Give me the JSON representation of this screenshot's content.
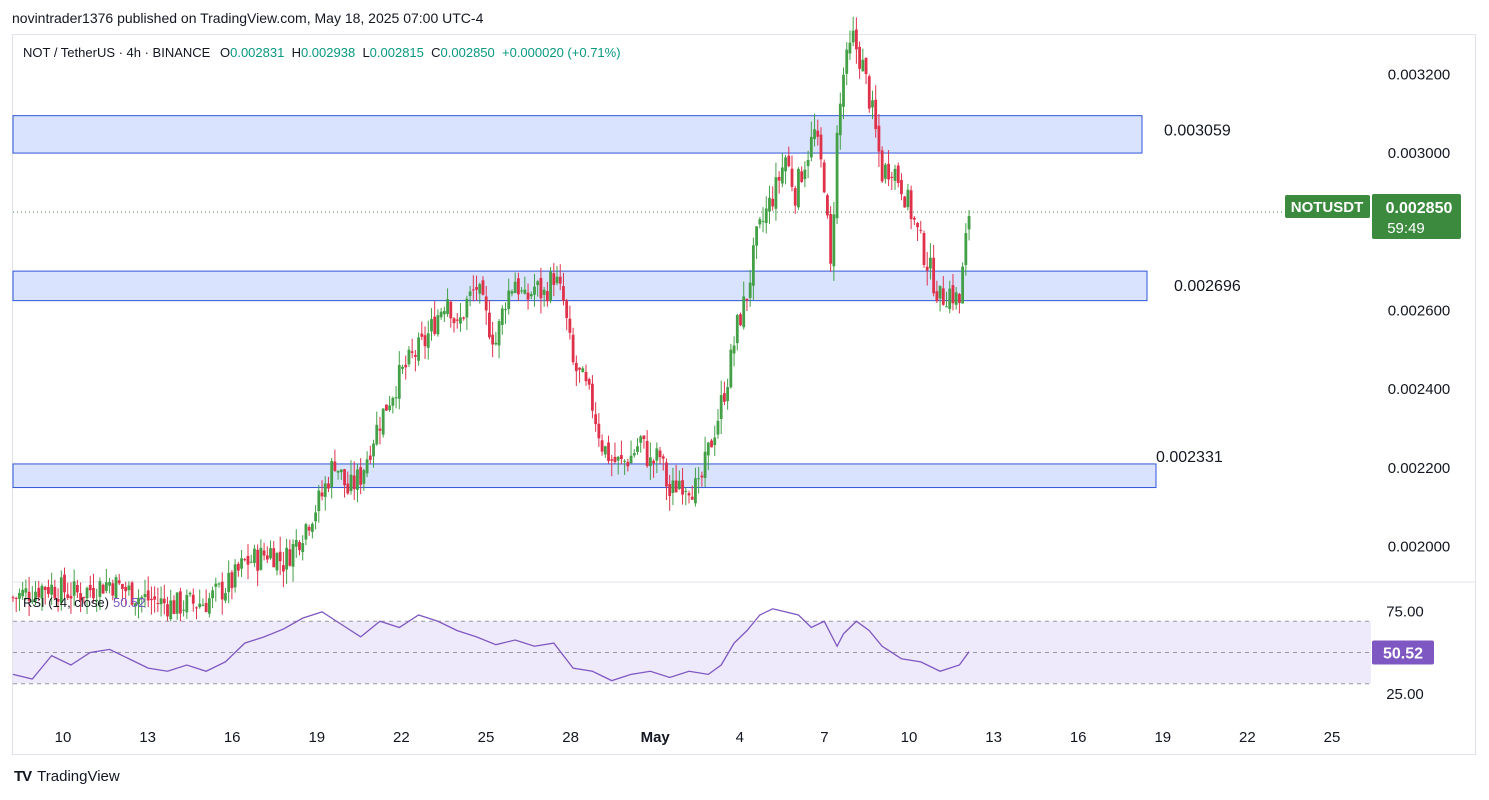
{
  "header": {
    "publisher": "novintrader1376 published on TradingView.com, May 18, 2025 07:00 UTC-4"
  },
  "legend": {
    "symbol": "NOT / TetherUS · 4h · BINANCE",
    "o_label": "O",
    "o_value": "0.002831",
    "h_label": "H",
    "h_value": "0.002938",
    "l_label": "L",
    "l_value": "0.002815",
    "c_label": "C",
    "c_value": "0.002850",
    "change": "+0.000020 (+0.71%)"
  },
  "price_tag": {
    "ticker": "NOTUSDT",
    "price": "0.002850",
    "countdown": "59:49"
  },
  "rsi": {
    "label": "RSI (14, close)",
    "value": "50.52",
    "ticks": [
      "75.00",
      "25.00"
    ]
  },
  "footer": {
    "brand": "TradingView",
    "logo": "TV"
  },
  "colors": {
    "up": "#089981",
    "up_candle": "#43a047",
    "down": "#e0314b",
    "zone_fill": "#d6e0fe",
    "zone_border": "#2f56d8",
    "rsi_line": "#7e57c2",
    "rsi_band": "#efeafb",
    "tag_green": "#3b8a3e"
  },
  "chart_data": {
    "type": "candlestick",
    "title": "NOT / TetherUS · 4h · BINANCE",
    "ylim": [
      0.00191,
      0.0033
    ],
    "y_ticks": [
      "0.003200",
      "0.003000",
      "0.002600",
      "0.002400",
      "0.002200",
      "0.002000"
    ],
    "x_ticks": [
      "10",
      "13",
      "16",
      "19",
      "22",
      "25",
      "28",
      "May",
      "4",
      "7",
      "10",
      "13",
      "16",
      "19",
      "22",
      "25"
    ],
    "zones": [
      {
        "label": "0.003059",
        "top": 0.003095,
        "bottom": 0.003
      },
      {
        "label": "0.002696",
        "top": 0.0027,
        "bottom": 0.002625
      },
      {
        "label": "0.002331",
        "top": 0.00221,
        "bottom": 0.00215
      }
    ],
    "current_price": 0.00285,
    "price_path": [
      [
        0,
        0.00187
      ],
      [
        10,
        0.0019
      ],
      [
        20,
        0.00188
      ],
      [
        30,
        0.00191
      ],
      [
        40,
        0.00187
      ],
      [
        50,
        0.00185
      ],
      [
        60,
        0.00186
      ],
      [
        68,
        0.00191
      ],
      [
        72,
        0.00196
      ],
      [
        76,
        0.00197
      ],
      [
        80,
        0.00199
      ],
      [
        84,
        0.00196
      ],
      [
        88,
        0.00201
      ],
      [
        92,
        0.00207
      ],
      [
        96,
        0.00213
      ],
      [
        100,
        0.00222
      ],
      [
        104,
        0.00214
      ],
      [
        108,
        0.00218
      ],
      [
        112,
        0.00228
      ],
      [
        116,
        0.00236
      ],
      [
        120,
        0.00243
      ],
      [
        124,
        0.00248
      ],
      [
        128,
        0.00252
      ],
      [
        132,
        0.00259
      ],
      [
        135,
        0.00264
      ],
      [
        138,
        0.00255
      ],
      [
        141,
        0.00262
      ],
      [
        144,
        0.00266
      ],
      [
        147,
        0.00258
      ],
      [
        150,
        0.00252
      ],
      [
        153,
        0.00263
      ],
      [
        156,
        0.00268
      ],
      [
        159,
        0.00262
      ],
      [
        162,
        0.00266
      ],
      [
        165,
        0.00264
      ],
      [
        168,
        0.00269
      ],
      [
        171,
        0.00262
      ],
      [
        174,
        0.00246
      ],
      [
        177,
        0.00242
      ],
      [
        180,
        0.00236
      ],
      [
        183,
        0.00226
      ],
      [
        186,
        0.00222
      ],
      [
        189,
        0.00221
      ],
      [
        192,
        0.00223
      ],
      [
        195,
        0.00227
      ],
      [
        198,
        0.00221
      ],
      [
        201,
        0.00223
      ],
      [
        204,
        0.00213
      ],
      [
        207,
        0.00217
      ],
      [
        210,
        0.00216
      ],
      [
        213,
        0.00214
      ],
      [
        216,
        0.00224
      ],
      [
        219,
        0.00233
      ],
      [
        222,
        0.00243
      ],
      [
        225,
        0.00256
      ],
      [
        228,
        0.00264
      ],
      [
        231,
        0.00278
      ],
      [
        234,
        0.00285
      ],
      [
        237,
        0.00291
      ],
      [
        240,
        0.00299
      ],
      [
        243,
        0.0029
      ],
      [
        246,
        0.00298
      ],
      [
        249,
        0.00305
      ],
      [
        252,
        0.00293
      ],
      [
        254,
        0.0027
      ],
      [
        256,
        0.00304
      ],
      [
        258,
        0.0032
      ],
      [
        261,
        0.00329
      ],
      [
        264,
        0.00322
      ],
      [
        267,
        0.0031
      ],
      [
        270,
        0.00295
      ],
      [
        273,
        0.00297
      ],
      [
        276,
        0.00292
      ],
      [
        279,
        0.00285
      ],
      [
        282,
        0.00277
      ],
      [
        285,
        0.0027
      ],
      [
        288,
        0.00263
      ],
      [
        291,
        0.00265
      ],
      [
        294,
        0.00262
      ],
      [
        297,
        0.00285
      ]
    ],
    "rsi_path": [
      [
        0,
        36
      ],
      [
        6,
        33
      ],
      [
        12,
        48
      ],
      [
        18,
        42
      ],
      [
        24,
        50
      ],
      [
        30,
        52
      ],
      [
        36,
        46
      ],
      [
        42,
        40
      ],
      [
        48,
        38
      ],
      [
        54,
        42
      ],
      [
        60,
        38
      ],
      [
        66,
        44
      ],
      [
        72,
        56
      ],
      [
        78,
        60
      ],
      [
        84,
        65
      ],
      [
        90,
        72
      ],
      [
        96,
        76
      ],
      [
        102,
        68
      ],
      [
        108,
        60
      ],
      [
        114,
        70
      ],
      [
        120,
        66
      ],
      [
        126,
        74
      ],
      [
        132,
        70
      ],
      [
        138,
        64
      ],
      [
        144,
        60
      ],
      [
        150,
        55
      ],
      [
        156,
        58
      ],
      [
        162,
        54
      ],
      [
        168,
        56
      ],
      [
        174,
        40
      ],
      [
        180,
        38
      ],
      [
        186,
        32
      ],
      [
        192,
        36
      ],
      [
        198,
        38
      ],
      [
        204,
        34
      ],
      [
        210,
        38
      ],
      [
        216,
        36
      ],
      [
        220,
        42
      ],
      [
        224,
        56
      ],
      [
        228,
        64
      ],
      [
        232,
        74
      ],
      [
        236,
        78
      ],
      [
        240,
        76
      ],
      [
        244,
        74
      ],
      [
        248,
        66
      ],
      [
        252,
        70
      ],
      [
        256,
        54
      ],
      [
        258,
        62
      ],
      [
        262,
        70
      ],
      [
        266,
        64
      ],
      [
        270,
        54
      ],
      [
        276,
        46
      ],
      [
        282,
        44
      ],
      [
        288,
        38
      ],
      [
        294,
        42
      ],
      [
        297,
        50.52
      ]
    ]
  }
}
